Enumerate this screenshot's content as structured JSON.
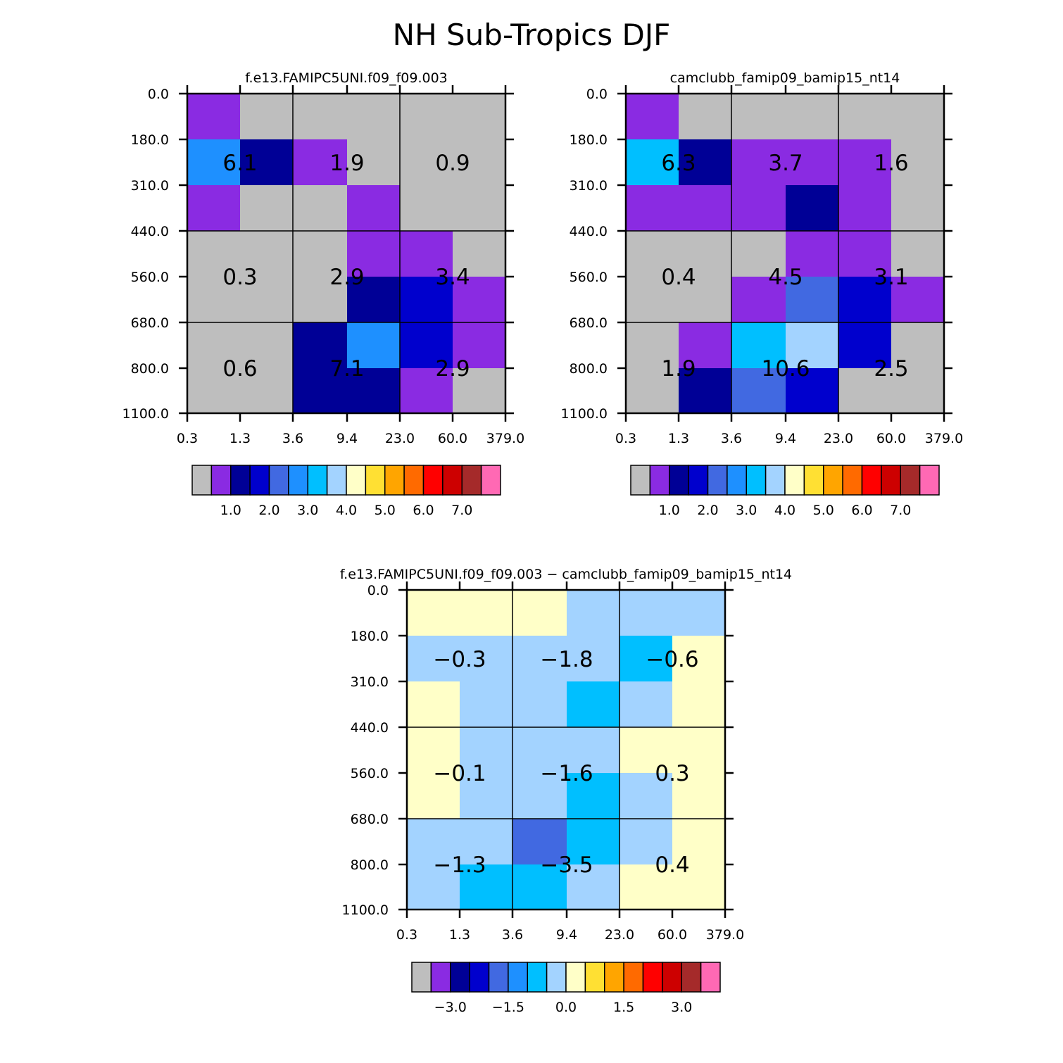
{
  "figure": {
    "title": "NH Sub-Tropics DJF"
  },
  "colors": {
    "gray": "#BEBEBE",
    "purple": "#8A2BE2",
    "navy": "#000096",
    "blue": "#0000CD",
    "royal": "#4169E1",
    "dodger": "#1E90FF",
    "sky": "#00BFFF",
    "lightblue": "#A3D3FF",
    "cream": "#FFFFC8",
    "gold": "#FFE033",
    "orange": "#FFA500",
    "darkorange": "#FF6A00",
    "red": "#FF0000",
    "crimson": "#CD0000",
    "brown": "#A52A2A",
    "pink": "#FF69B4",
    "grid": "#000000"
  },
  "chart_data": [
    {
      "type": "heatmap",
      "title": "f.e13.FAMIPC5UNI.f09_f09.003",
      "x_ticks": [
        "0.3",
        "1.3",
        "3.6",
        "9.4",
        "23.0",
        "60.0",
        "379.0"
      ],
      "y_ticks": [
        "0.0",
        "180.0",
        "310.0",
        "440.0",
        "560.0",
        "680.0",
        "800.0",
        "1100.0"
      ],
      "cells": [
        [
          "purple",
          "gray",
          "gray",
          "gray",
          "gray",
          "gray"
        ],
        [
          "dodger",
          "navy",
          "purple",
          "gray",
          "gray",
          "gray"
        ],
        [
          "purple",
          "gray",
          "gray",
          "purple",
          "gray",
          "gray"
        ],
        [
          "gray",
          "gray",
          "gray",
          "purple",
          "purple",
          "gray"
        ],
        [
          "gray",
          "gray",
          "gray",
          "navy",
          "blue",
          "purple"
        ],
        [
          "gray",
          "gray",
          "navy",
          "dodger",
          "blue",
          "purple"
        ],
        [
          "gray",
          "gray",
          "navy",
          "navy",
          "purple",
          "gray"
        ]
      ],
      "block_values": [
        [
          "6.1",
          "1.9",
          "0.9"
        ],
        [
          "0.3",
          "2.9",
          "3.4"
        ],
        [
          "0.6",
          "7.1",
          "2.9"
        ]
      ],
      "colorbar": {
        "colors": [
          "gray",
          "purple",
          "navy",
          "blue",
          "royal",
          "dodger",
          "sky",
          "lightblue",
          "cream",
          "gold",
          "orange",
          "darkorange",
          "red",
          "crimson",
          "brown",
          "pink"
        ],
        "labels": [
          "1.0",
          "2.0",
          "3.0",
          "4.0",
          "5.0",
          "6.0",
          "7.0"
        ],
        "label_bounds": [
          2,
          4,
          6,
          8,
          10,
          12,
          14
        ]
      }
    },
    {
      "type": "heatmap",
      "title": "camclubb_famip09_bamip15_nt14",
      "x_ticks": [
        "0.3",
        "1.3",
        "3.6",
        "9.4",
        "23.0",
        "60.0",
        "379.0"
      ],
      "y_ticks": [
        "0.0",
        "180.0",
        "310.0",
        "440.0",
        "560.0",
        "680.0",
        "800.0",
        "1100.0"
      ],
      "cells": [
        [
          "purple",
          "gray",
          "gray",
          "gray",
          "gray",
          "gray"
        ],
        [
          "sky",
          "navy",
          "purple",
          "purple",
          "purple",
          "gray"
        ],
        [
          "purple",
          "purple",
          "purple",
          "navy",
          "purple",
          "gray"
        ],
        [
          "gray",
          "gray",
          "gray",
          "purple",
          "purple",
          "gray"
        ],
        [
          "gray",
          "gray",
          "purple",
          "royal",
          "blue",
          "purple"
        ],
        [
          "gray",
          "purple",
          "sky",
          "lightblue",
          "blue",
          "gray"
        ],
        [
          "gray",
          "navy",
          "royal",
          "blue",
          "gray",
          "gray"
        ]
      ],
      "block_values": [
        [
          "6.3",
          "3.7",
          "1.6"
        ],
        [
          "0.4",
          "4.5",
          "3.1"
        ],
        [
          "1.9",
          "10.6",
          "2.5"
        ]
      ],
      "colorbar": {
        "colors": [
          "gray",
          "purple",
          "navy",
          "blue",
          "royal",
          "dodger",
          "sky",
          "lightblue",
          "cream",
          "gold",
          "orange",
          "darkorange",
          "red",
          "crimson",
          "brown",
          "pink"
        ],
        "labels": [
          "1.0",
          "2.0",
          "3.0",
          "4.0",
          "5.0",
          "6.0",
          "7.0"
        ],
        "label_bounds": [
          2,
          4,
          6,
          8,
          10,
          12,
          14
        ]
      }
    },
    {
      "type": "heatmap",
      "title": "f.e13.FAMIPC5UNI.f09_f09.003 − camclubb_famip09_bamip15_nt14",
      "x_ticks": [
        "0.3",
        "1.3",
        "3.6",
        "9.4",
        "23.0",
        "60.0",
        "379.0"
      ],
      "y_ticks": [
        "0.0",
        "180.0",
        "310.0",
        "440.0",
        "560.0",
        "680.0",
        "800.0",
        "1100.0"
      ],
      "cells": [
        [
          "cream",
          "cream",
          "cream",
          "lightblue",
          "lightblue",
          "lightblue"
        ],
        [
          "lightblue",
          "lightblue",
          "lightblue",
          "lightblue",
          "sky",
          "cream"
        ],
        [
          "cream",
          "lightblue",
          "lightblue",
          "sky",
          "lightblue",
          "cream"
        ],
        [
          "cream",
          "lightblue",
          "lightblue",
          "lightblue",
          "cream",
          "cream"
        ],
        [
          "cream",
          "lightblue",
          "lightblue",
          "sky",
          "lightblue",
          "cream"
        ],
        [
          "lightblue",
          "lightblue",
          "royal",
          "sky",
          "lightblue",
          "cream"
        ],
        [
          "lightblue",
          "sky",
          "sky",
          "lightblue",
          "cream",
          "cream"
        ]
      ],
      "block_values": [
        [
          "−0.3",
          "−1.8",
          "−0.6"
        ],
        [
          "−0.1",
          "−1.6",
          "0.3"
        ],
        [
          "−1.3",
          "−3.5",
          "0.4"
        ]
      ],
      "colorbar": {
        "colors": [
          "gray",
          "purple",
          "navy",
          "blue",
          "royal",
          "dodger",
          "sky",
          "lightblue",
          "cream",
          "gold",
          "orange",
          "darkorange",
          "red",
          "crimson",
          "brown",
          "pink"
        ],
        "labels": [
          "−3.0",
          "−1.5",
          "0.0",
          "1.5",
          "3.0"
        ],
        "label_bounds": [
          2,
          5,
          8,
          11,
          14
        ]
      }
    }
  ]
}
